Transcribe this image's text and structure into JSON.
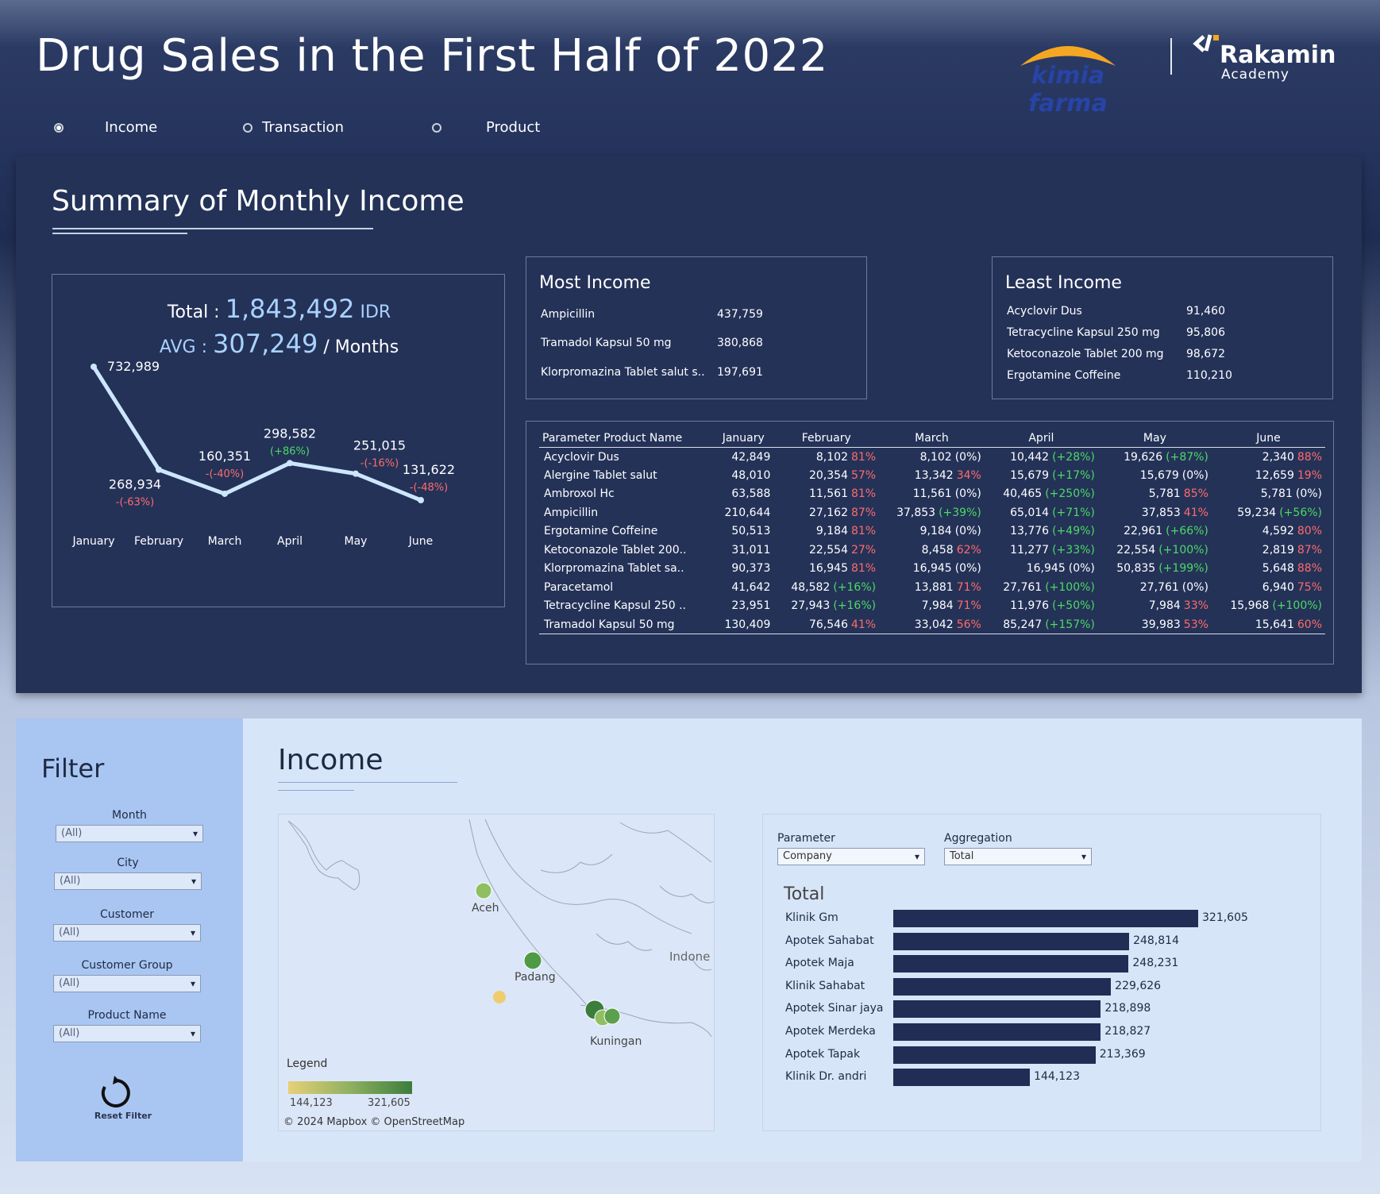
{
  "header": {
    "title": "Drug Sales in the First Half of 2022",
    "rakamin_name": "Rakamin",
    "rakamin_sub": "Academy",
    "kf_name": "kimia farma"
  },
  "nav": [
    {
      "label": "Income",
      "selected": true
    },
    {
      "label": "Transaction",
      "selected": false
    },
    {
      "label": "Product",
      "selected": false
    }
  ],
  "summary": {
    "title": "Summary of Monthly Income",
    "total_label": "Total :",
    "total_value": "1,843,492",
    "total_unit": "IDR",
    "avg_label": "AVG :",
    "avg_value": "307,249",
    "avg_unit": "/ Months"
  },
  "chart_data": {
    "type": "line",
    "title": "",
    "xlabel": "",
    "ylabel": "",
    "categories": [
      "January",
      "February",
      "March",
      "April",
      "May",
      "June"
    ],
    "series": [
      {
        "values": [
          732989,
          268934,
          160351,
          298582,
          251015,
          131622
        ],
        "value_labels": [
          "732,989",
          "268,934",
          "160,351",
          "298,582",
          "251,015",
          "131,622"
        ],
        "change_labels": [
          "",
          "-(-63%)",
          "-(-40%)",
          "(+86%)",
          "-(-16%)",
          "-(-48%)"
        ],
        "change_colors": [
          "",
          "#ff6b6b",
          "#ff6b6b",
          "#4cd964",
          "#ff6b6b",
          "#ff6b6b"
        ]
      }
    ],
    "color": "#cde6ff"
  },
  "most_income": {
    "title": "Most Income",
    "rows": [
      {
        "name": "Ampicillin",
        "value": "437,759"
      },
      {
        "name": "Tramadol Kapsul 50 mg",
        "value": "380,868"
      },
      {
        "name": "Klorpromazina Tablet salut s..",
        "value": "197,691"
      }
    ]
  },
  "least_income": {
    "title": "Least Income",
    "rows": [
      {
        "name": "Acyclovir Dus",
        "value": "91,460"
      },
      {
        "name": "Tetracycline Kapsul 250 mg",
        "value": "95,806"
      },
      {
        "name": "Ketoconazole Tablet 200 mg",
        "value": "98,672"
      },
      {
        "name": "Ergotamine Coffeine",
        "value": "110,210"
      }
    ]
  },
  "table": {
    "headers": [
      "Parameter Product Name",
      "January",
      "February",
      "March",
      "April",
      "May",
      "June"
    ],
    "rows": [
      {
        "name": "Acyclovir Dus",
        "cells": [
          [
            "42,849",
            ""
          ],
          [
            "8,102",
            "81%"
          ],
          [
            "8,102",
            "(0%)"
          ],
          [
            "10,442",
            "(+28%)"
          ],
          [
            "19,626",
            "(+87%)"
          ],
          [
            "2,340",
            "88%"
          ]
        ]
      },
      {
        "name": "Alergine Tablet salut",
        "cells": [
          [
            "48,010",
            ""
          ],
          [
            "20,354",
            "57%"
          ],
          [
            "13,342",
            "34%"
          ],
          [
            "15,679",
            "(+17%)"
          ],
          [
            "15,679",
            "(0%)"
          ],
          [
            "12,659",
            "19%"
          ]
        ]
      },
      {
        "name": "Ambroxol Hc",
        "cells": [
          [
            "63,588",
            ""
          ],
          [
            "11,561",
            "81%"
          ],
          [
            "11,561",
            "(0%)"
          ],
          [
            "40,465",
            "(+250%)"
          ],
          [
            "5,781",
            "85%"
          ],
          [
            "5,781",
            "(0%)"
          ]
        ]
      },
      {
        "name": "Ampicillin",
        "cells": [
          [
            "210,644",
            ""
          ],
          [
            "27,162",
            "87%"
          ],
          [
            "37,853",
            "(+39%)"
          ],
          [
            "65,014",
            "(+71%)"
          ],
          [
            "37,853",
            "41%"
          ],
          [
            "59,234",
            "(+56%)"
          ]
        ]
      },
      {
        "name": "Ergotamine Coffeine",
        "cells": [
          [
            "50,513",
            ""
          ],
          [
            "9,184",
            "81%"
          ],
          [
            "9,184",
            "(0%)"
          ],
          [
            "13,776",
            "(+49%)"
          ],
          [
            "22,961",
            "(+66%)"
          ],
          [
            "4,592",
            "80%"
          ]
        ]
      },
      {
        "name": "Ketoconazole Tablet 200..",
        "cells": [
          [
            "31,011",
            ""
          ],
          [
            "22,554",
            "27%"
          ],
          [
            "8,458",
            "62%"
          ],
          [
            "11,277",
            "(+33%)"
          ],
          [
            "22,554",
            "(+100%)"
          ],
          [
            "2,819",
            "87%"
          ]
        ]
      },
      {
        "name": "Klorpromazina Tablet sa..",
        "cells": [
          [
            "90,373",
            ""
          ],
          [
            "16,945",
            "81%"
          ],
          [
            "16,945",
            "(0%)"
          ],
          [
            "16,945",
            "(0%)"
          ],
          [
            "50,835",
            "(+199%)"
          ],
          [
            "5,648",
            "88%"
          ]
        ]
      },
      {
        "name": "Paracetamol",
        "cells": [
          [
            "41,642",
            ""
          ],
          [
            "48,582",
            "(+16%)"
          ],
          [
            "13,881",
            "71%"
          ],
          [
            "27,761",
            "(+100%)"
          ],
          [
            "27,761",
            "(0%)"
          ],
          [
            "6,940",
            "75%"
          ]
        ]
      },
      {
        "name": "Tetracycline Kapsul 250 ..",
        "cells": [
          [
            "23,951",
            ""
          ],
          [
            "27,943",
            "(+16%)"
          ],
          [
            "7,984",
            "71%"
          ],
          [
            "11,976",
            "(+50%)"
          ],
          [
            "7,984",
            "33%"
          ],
          [
            "15,968",
            "(+100%)"
          ]
        ]
      },
      {
        "name": "Tramadol Kapsul 50 mg",
        "cells": [
          [
            "130,409",
            ""
          ],
          [
            "76,546",
            "41%"
          ],
          [
            "33,042",
            "56%"
          ],
          [
            "85,247",
            "(+157%)"
          ],
          [
            "39,983",
            "53%"
          ],
          [
            "15,641",
            "60%"
          ]
        ]
      }
    ]
  },
  "filter": {
    "title": "Filter",
    "fields": [
      {
        "label": "Month",
        "value": "(All)"
      },
      {
        "label": "City",
        "value": "(All)"
      },
      {
        "label": "Customer",
        "value": "(All)"
      },
      {
        "label": "Customer Group",
        "value": "(All)"
      },
      {
        "label": "Product Name",
        "value": "(All)"
      }
    ],
    "reset_label": "Reset Filter"
  },
  "income": {
    "title": "Income",
    "map": {
      "labels": [
        "Aceh",
        "Padang",
        "Kuningan",
        "Indone"
      ],
      "legend_title": "Legend",
      "legend_min": "144,123",
      "legend_max": "321,605",
      "credit": "© 2024 Mapbox  © OpenStreetMap"
    },
    "parameter_label": "Parameter",
    "parameter_value": "Company",
    "aggregation_label": "Aggregation",
    "aggregation_value": "Total",
    "bars_title": "Total",
    "bars": [
      {
        "name": "Klinik Gm",
        "value": 321605,
        "label": "321,605"
      },
      {
        "name": "Apotek Sahabat",
        "value": 248814,
        "label": "248,814"
      },
      {
        "name": "Apotek Maja",
        "value": 248231,
        "label": "248,231"
      },
      {
        "name": "Klinik Sahabat",
        "value": 229626,
        "label": "229,626"
      },
      {
        "name": "Apotek Sinar jaya",
        "value": 218898,
        "label": "218,898"
      },
      {
        "name": "Apotek Merdeka",
        "value": 218827,
        "label": "218,827"
      },
      {
        "name": "Apotek Tapak",
        "value": 213369,
        "label": "213,369"
      },
      {
        "name": "Klinik Dr. andri",
        "value": 144123,
        "label": "144,123"
      }
    ]
  }
}
